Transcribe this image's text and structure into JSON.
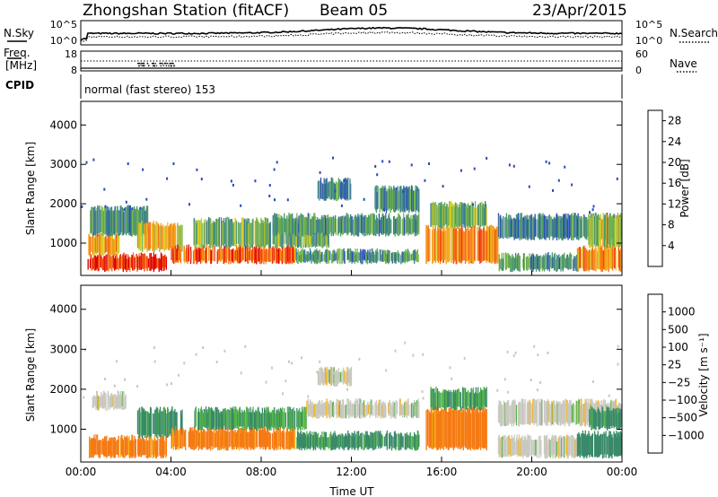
{
  "header": {
    "station": "Zhongshan Station (fitACF)",
    "beam": "Beam 05",
    "date": "23/Apr/2015"
  },
  "aux": {
    "nsky_label": "N.Sky",
    "nsearch_label": "N.Search",
    "noise_ticks": [
      "10^5",
      "10^0"
    ],
    "freq_label": "Freq.",
    "freq_unit": "[MHz]",
    "freq_ticks": [
      "18",
      "8"
    ],
    "nave_label": "Nave",
    "nave_ticks": [
      "60",
      "0"
    ],
    "cpid_label": "CPID",
    "cpid_text": "normal (fast stereo) 153"
  },
  "chart_data": [
    {
      "type": "heatmap",
      "name": "power",
      "xlabel": "Time UT",
      "ylabel": "Slant Range [km]",
      "x_ticks": [
        "00:00",
        "04:00",
        "08:00",
        "12:00",
        "16:00",
        "20:00",
        "00:00"
      ],
      "x_range_hours": [
        0,
        24
      ],
      "y_ticks": [
        1000,
        2000,
        3000,
        4000
      ],
      "ylim": [
        180,
        4600
      ],
      "colorbar": {
        "label": "Power [dB]",
        "ticks": [
          "4",
          "8",
          "12",
          "16",
          "20",
          "24",
          "28"
        ],
        "range": [
          0,
          30
        ],
        "colors": [
          "#1a1aff",
          "#2a4bbb",
          "#3c7d92",
          "#4e9b6a",
          "#7ab84a",
          "#d8cc28",
          "#f7a21b",
          "#f57514",
          "#ef3a10",
          "#e00000"
        ]
      },
      "bands": [
        {
          "t0": 0.3,
          "t1": 3.8,
          "r0": 300,
          "r1": 700,
          "level": 26
        },
        {
          "t0": 0.3,
          "t1": 1.7,
          "r0": 700,
          "r1": 1200,
          "level": 20
        },
        {
          "t0": 0.4,
          "t1": 3.0,
          "r0": 1200,
          "r1": 1900,
          "level": 10
        },
        {
          "t0": 2.5,
          "t1": 4.5,
          "r0": 800,
          "r1": 1500,
          "level": 18
        },
        {
          "t0": 4.0,
          "t1": 9.5,
          "r0": 500,
          "r1": 900,
          "level": 24
        },
        {
          "t0": 5.0,
          "t1": 11.0,
          "r0": 900,
          "r1": 1600,
          "level": 12
        },
        {
          "t0": 8.5,
          "t1": 15.0,
          "r0": 1200,
          "r1": 1700,
          "level": 10
        },
        {
          "t0": 9.5,
          "t1": 15.0,
          "r0": 500,
          "r1": 800,
          "level": 10
        },
        {
          "t0": 10.5,
          "t1": 12.0,
          "r0": 2100,
          "r1": 2600,
          "level": 8
        },
        {
          "t0": 13.0,
          "t1": 15.0,
          "r0": 1800,
          "r1": 2400,
          "level": 9
        },
        {
          "t0": 15.3,
          "t1": 18.5,
          "r0": 500,
          "r1": 1400,
          "level": 22
        },
        {
          "t0": 15.5,
          "t1": 18.0,
          "r0": 1400,
          "r1": 2000,
          "level": 12
        },
        {
          "t0": 18.5,
          "t1": 24.0,
          "r0": 1100,
          "r1": 1700,
          "level": 8
        },
        {
          "t0": 18.5,
          "t1": 22.0,
          "r0": 300,
          "r1": 700,
          "level": 10
        },
        {
          "t0": 22.0,
          "t1": 24.0,
          "r0": 300,
          "r1": 900,
          "level": 20
        },
        {
          "t0": 22.5,
          "t1": 24.0,
          "r0": 900,
          "r1": 1700,
          "level": 14
        }
      ]
    },
    {
      "type": "heatmap",
      "name": "velocity",
      "xlabel": "Time UT",
      "ylabel": "Slant Range [km]",
      "x_ticks": [
        "00:00",
        "04:00",
        "08:00",
        "12:00",
        "16:00",
        "20:00",
        "00:00"
      ],
      "x_range_hours": [
        0,
        24
      ],
      "y_ticks": [
        1000,
        2000,
        3000,
        4000
      ],
      "ylim": [
        180,
        4600
      ],
      "colorbar": {
        "label": "Velocity [m s⁻¹]",
        "ticks": [
          "1000",
          "500",
          "100",
          "25",
          "−25",
          "−100",
          "−500",
          "−1000"
        ],
        "colors": [
          "#1c2fb4",
          "#2a63a6",
          "#3a8a6a",
          "#55b54a",
          "#c9c9c0",
          "#f7b015",
          "#f57a14",
          "#ef3a10",
          "#e00000"
        ]
      },
      "bands": [
        {
          "t0": 0.3,
          "t1": 3.8,
          "r0": 300,
          "r1": 800,
          "level": -200
        },
        {
          "t0": 0.5,
          "t1": 2.0,
          "r0": 1500,
          "r1": 1900,
          "level": 0
        },
        {
          "t0": 2.5,
          "t1": 4.5,
          "r0": 800,
          "r1": 1500,
          "level": 150
        },
        {
          "t0": 4.0,
          "t1": 9.5,
          "r0": 500,
          "r1": 1000,
          "level": -200
        },
        {
          "t0": 5.0,
          "t1": 10.0,
          "r0": 1000,
          "r1": 1500,
          "level": 100
        },
        {
          "t0": 9.5,
          "t1": 15.0,
          "r0": 500,
          "r1": 900,
          "level": 150
        },
        {
          "t0": 10.0,
          "t1": 15.0,
          "r0": 1300,
          "r1": 1700,
          "level": 0
        },
        {
          "t0": 10.5,
          "t1": 12.0,
          "r0": 2100,
          "r1": 2500,
          "level": 0
        },
        {
          "t0": 15.3,
          "t1": 18.0,
          "r0": 500,
          "r1": 1500,
          "level": -200
        },
        {
          "t0": 15.5,
          "t1": 18.0,
          "r0": 1500,
          "r1": 2000,
          "level": 120
        },
        {
          "t0": 18.5,
          "t1": 24.0,
          "r0": 1100,
          "r1": 1700,
          "level": 0
        },
        {
          "t0": 18.5,
          "t1": 22.0,
          "r0": 300,
          "r1": 800,
          "level": 0
        },
        {
          "t0": 22.0,
          "t1": 24.0,
          "r0": 300,
          "r1": 900,
          "level": 300
        },
        {
          "t0": 22.5,
          "t1": 24.0,
          "r0": 1000,
          "r1": 1500,
          "level": 200
        }
      ]
    }
  ]
}
